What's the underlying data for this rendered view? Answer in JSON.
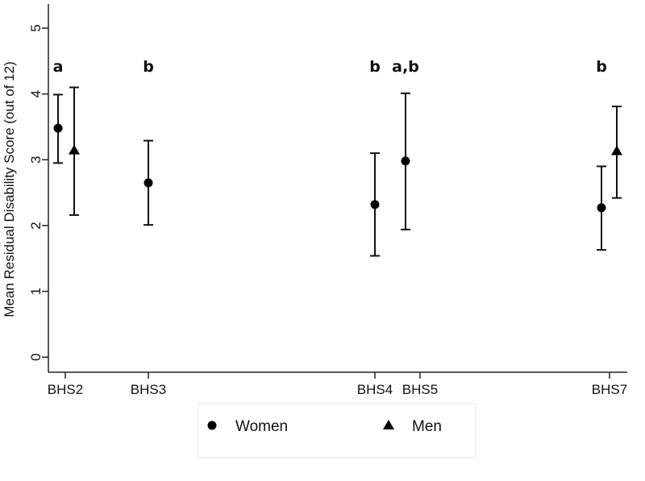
{
  "chart_data": {
    "type": "scatter",
    "subtype": "point-with-error-bars",
    "title": "",
    "xlabel": "",
    "ylabel": "Mean Residual Disability Score (out of 12)",
    "ylim": [
      0,
      5
    ],
    "yticks": [
      "0",
      "1",
      "2",
      "3",
      "4",
      "5"
    ],
    "categories": [
      "BHS2",
      "BHS3",
      "BHS4",
      "BHS5",
      "BHS7"
    ],
    "grid": false,
    "legend_position": "bottom",
    "series": [
      {
        "name": "Women",
        "marker": "circle",
        "color": "#000000",
        "points": [
          {
            "category": "BHS2",
            "mean": 3.48,
            "lower": 2.95,
            "upper": 3.99
          },
          {
            "category": "BHS3",
            "mean": 2.65,
            "lower": 2.01,
            "upper": 3.29
          },
          {
            "category": "BHS4",
            "mean": 2.32,
            "lower": 1.54,
            "upper": 3.1
          },
          {
            "category": "BHS5",
            "mean": 2.98,
            "lower": 1.94,
            "upper": 4.01
          },
          {
            "category": "BHS7",
            "mean": 2.27,
            "lower": 1.63,
            "upper": 2.9
          }
        ]
      },
      {
        "name": "Men",
        "marker": "triangle",
        "color": "#000000",
        "points": [
          {
            "category": "BHS2",
            "mean": 3.13,
            "lower": 2.16,
            "upper": 4.1
          },
          {
            "category": "BHS7",
            "mean": 3.12,
            "lower": 2.42,
            "upper": 3.81
          }
        ]
      }
    ],
    "annotations": [
      {
        "category": "BHS2",
        "text": "a"
      },
      {
        "category": "BHS3",
        "text": "b"
      },
      {
        "category": "BHS4",
        "text": "b"
      },
      {
        "category": "BHS5",
        "text": "a,b"
      },
      {
        "category": "BHS7",
        "text": "b"
      }
    ]
  }
}
